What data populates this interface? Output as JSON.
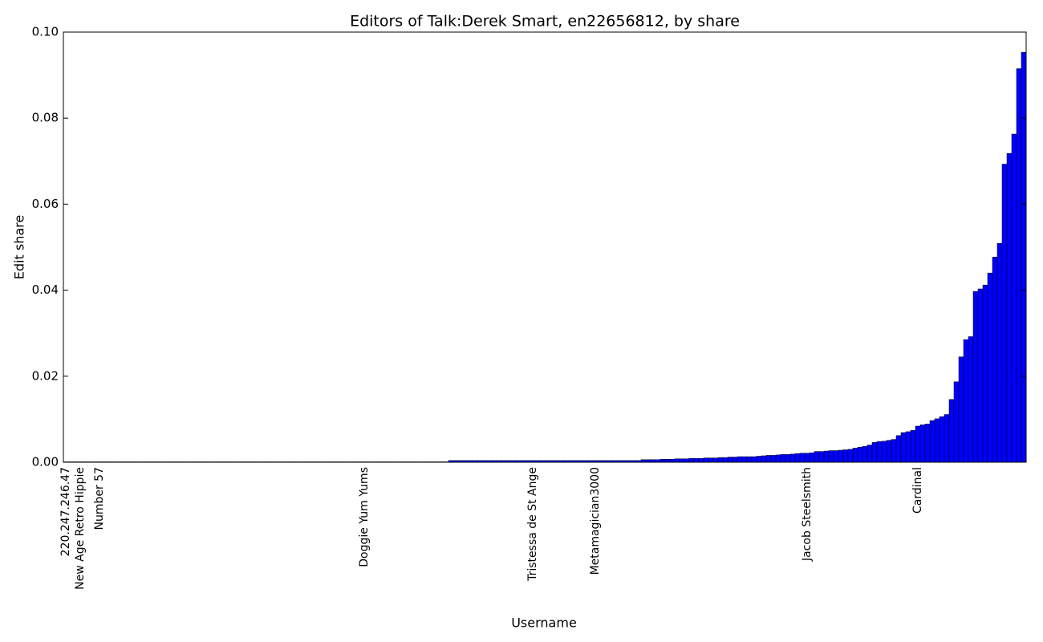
{
  "chart_data": {
    "type": "bar",
    "title": "Editors of Talk:Derek Smart, en22656812, by share",
    "x_label": "Username",
    "y_label": "Edit share",
    "color": "#0000ff",
    "ylim": [
      0,
      0.1
    ],
    "yticks": [
      {
        "value": 0,
        "label": "0.00"
      },
      {
        "value": 0.02,
        "label": "0.02"
      },
      {
        "value": 0.04,
        "label": "0.04"
      },
      {
        "value": 0.06,
        "label": "0.06"
      },
      {
        "value": 0.08,
        "label": "0.08"
      },
      {
        "value": 0.1,
        "label": "0.10"
      }
    ],
    "categories": [
      "220.247.246.47",
      null,
      null,
      "New Age Retro Hippie",
      null,
      null,
      null,
      "Number 57",
      null,
      null,
      null,
      null,
      null,
      null,
      null,
      null,
      null,
      null,
      null,
      null,
      null,
      null,
      null,
      null,
      null,
      null,
      null,
      null,
      null,
      null,
      null,
      null,
      null,
      null,
      null,
      null,
      null,
      null,
      null,
      null,
      null,
      null,
      null,
      null,
      null,
      null,
      null,
      null,
      null,
      null,
      null,
      null,
      null,
      null,
      null,
      null,
      null,
      null,
      null,
      null,
      null,
      null,
      "Doggie Yum Yums",
      null,
      null,
      null,
      null,
      null,
      null,
      null,
      null,
      null,
      null,
      null,
      null,
      null,
      null,
      null,
      null,
      null,
      null,
      null,
      null,
      null,
      null,
      null,
      null,
      null,
      null,
      null,
      null,
      null,
      null,
      null,
      null,
      null,
      null,
      "Tristessa de St Ange",
      null,
      null,
      null,
      null,
      null,
      null,
      null,
      null,
      null,
      null,
      null,
      null,
      "Metamagician3000",
      null,
      null,
      null,
      null,
      null,
      null,
      null,
      null,
      null,
      null,
      null,
      null,
      null,
      null,
      null,
      null,
      null,
      null,
      null,
      null,
      null,
      null,
      null,
      null,
      null,
      null,
      null,
      null,
      null,
      null,
      null,
      null,
      null,
      null,
      null,
      null,
      null,
      null,
      null,
      null,
      null,
      null,
      null,
      "Jacob Steelsmith",
      null,
      null,
      null,
      null,
      null,
      null,
      null,
      null,
      null,
      null,
      null,
      null,
      null,
      null,
      null,
      null,
      null,
      null,
      null,
      null,
      null,
      null,
      "Cardinal",
      null,
      null,
      null,
      null,
      null,
      null,
      null,
      null,
      null,
      null,
      null,
      null,
      null,
      null,
      null,
      null,
      null,
      null,
      null,
      null,
      null,
      null
    ],
    "values": [
      0.0001,
      0.0001,
      0.0001,
      0.0001,
      0.0001,
      0.0001,
      0.0001,
      0.0001,
      0.0001,
      0.0001,
      0.0001,
      0.0001,
      0.0001,
      0.0001,
      0.0001,
      0.0001,
      0.0001,
      0.0001,
      0.0001,
      0.0001,
      0.0001,
      0.0001,
      0.0001,
      0.0001,
      0.0001,
      0.0001,
      0.0001,
      0.0001,
      0.0001,
      0.0001,
      0.0001,
      0.0001,
      0.0001,
      0.0001,
      0.0001,
      0.0001,
      0.0001,
      0.0001,
      0.0001,
      0.0001,
      0.0001,
      0.0001,
      0.0001,
      0.0001,
      0.0001,
      0.0001,
      0.0001,
      0.0001,
      0.0001,
      0.0001,
      0.0001,
      0.0001,
      0.0001,
      0.0001,
      0.0001,
      0.0001,
      0.0001,
      0.0001,
      0.0001,
      0.0001,
      0.0001,
      0.0001,
      0.0001,
      0.0001,
      0.0001,
      0.0001,
      0.0001,
      0.0001,
      0.0001,
      0.0001,
      0.0001,
      0.0001,
      0.0001,
      0.0001,
      0.0001,
      0.0001,
      0.0001,
      0.0001,
      0.0001,
      0.0001,
      0.0004,
      0.0004,
      0.0004,
      0.0004,
      0.0004,
      0.0004,
      0.0004,
      0.0004,
      0.0004,
      0.0004,
      0.0004,
      0.0004,
      0.0004,
      0.0004,
      0.0004,
      0.0004,
      0.0004,
      0.0004,
      0.0004,
      0.0004,
      0.0004,
      0.0004,
      0.0004,
      0.0004,
      0.0004,
      0.0004,
      0.0004,
      0.0004,
      0.0004,
      0.0004,
      0.0004,
      0.0004,
      0.0004,
      0.0004,
      0.0004,
      0.0004,
      0.0004,
      0.0004,
      0.0004,
      0.0004,
      0.0006,
      0.0006,
      0.0006,
      0.0006,
      0.0007,
      0.0007,
      0.0007,
      0.0008,
      0.0008,
      0.0008,
      0.0009,
      0.0009,
      0.0009,
      0.001,
      0.001,
      0.001,
      0.0011,
      0.0011,
      0.0012,
      0.0012,
      0.0013,
      0.0013,
      0.0013,
      0.0013,
      0.0014,
      0.0015,
      0.0016,
      0.0016,
      0.0017,
      0.0018,
      0.0018,
      0.0019,
      0.002,
      0.0021,
      0.0021,
      0.0022,
      0.0025,
      0.0025,
      0.0026,
      0.0027,
      0.0027,
      0.0028,
      0.0029,
      0.003,
      0.0033,
      0.0035,
      0.0037,
      0.004,
      0.0046,
      0.0048,
      0.0049,
      0.0051,
      0.0053,
      0.0062,
      0.0069,
      0.0071,
      0.0074,
      0.0084,
      0.0087,
      0.0089,
      0.0097,
      0.0101,
      0.0106,
      0.0111,
      0.0146,
      0.0187,
      0.0245,
      0.0285,
      0.0292,
      0.0397,
      0.0403,
      0.0412,
      0.044,
      0.0477,
      0.0509,
      0.0693,
      0.0718,
      0.0763,
      0.0915,
      0.0953
    ]
  }
}
